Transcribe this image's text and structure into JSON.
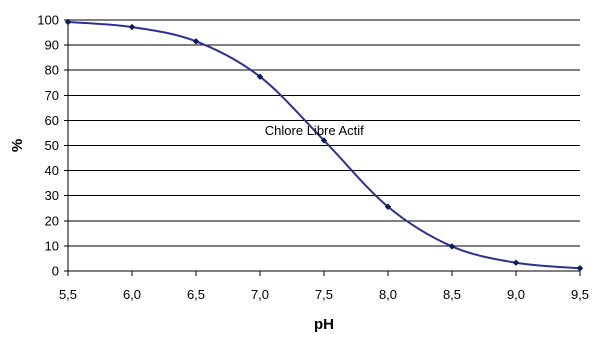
{
  "chart_data": {
    "type": "line",
    "title": "",
    "xlabel": "pH",
    "ylabel": "%",
    "x_tick_labels": [
      "5,5",
      "6,0",
      "6,5",
      "7,0",
      "7,5",
      "8,0",
      "8,5",
      "9,0",
      "9,5"
    ],
    "y_tick_labels": [
      "0",
      "10",
      "20",
      "30",
      "40",
      "50",
      "60",
      "70",
      "80",
      "90",
      "100"
    ],
    "xlim": [
      5.5,
      9.5
    ],
    "ylim": [
      0,
      100
    ],
    "grid": "horizontal",
    "legend": "none",
    "series": [
      {
        "color": "#2E3192",
        "marker_color": "#0F1A5C",
        "x": [
          5.5,
          6.0,
          6.5,
          7.0,
          7.5,
          8.0,
          8.5,
          9.0,
          9.5
        ],
        "y": [
          99.2,
          97.2,
          91.5,
          77.4,
          52.0,
          25.6,
          9.8,
          3.3,
          1.1
        ]
      }
    ],
    "annotations": [
      {
        "text": "Chlore Libre Actif",
        "x": 7.1,
        "y": 54.2
      }
    ]
  }
}
